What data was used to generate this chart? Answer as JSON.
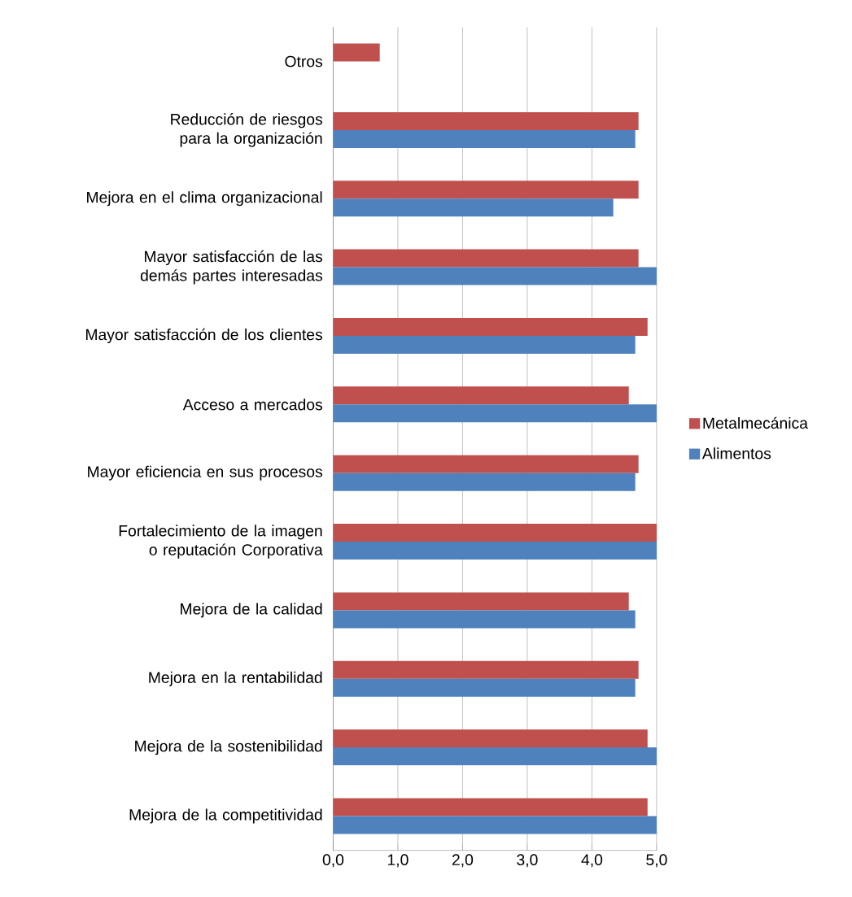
{
  "chart_data": {
    "type": "bar",
    "orientation": "horizontal",
    "categories": [
      "Otros",
      "Reducción de riesgos para la organización",
      "Mejora en el clima organizacional",
      "Mayor satisfacción de las demás partes interesadas",
      "Mayor satisfacción de los clientes",
      "Acceso a mercados",
      "Mayor eficiencia en sus procesos",
      "Fortalecimiento de la imagen o reputación Corporativa",
      "Mejora de la calidad",
      "Mejora en la rentabilidad",
      "Mejora de la sostenibilidad",
      "Mejora de la competitividad"
    ],
    "series": [
      {
        "name": "Metalmecánica",
        "color": "#c0504d",
        "values": [
          0.72,
          4.72,
          4.72,
          4.72,
          4.86,
          4.57,
          4.72,
          5.0,
          4.57,
          4.72,
          4.86,
          4.86
        ]
      },
      {
        "name": "Alimentos",
        "color": "#4f81bd",
        "values": [
          null,
          4.67,
          4.33,
          5.0,
          4.67,
          5.0,
          4.67,
          5.0,
          4.67,
          4.67,
          5.0,
          5.0
        ]
      }
    ],
    "xlim": [
      0,
      5
    ],
    "xticks": [
      {
        "value": 0,
        "label": "0,0"
      },
      {
        "value": 1,
        "label": "1,0"
      },
      {
        "value": 2,
        "label": "2,0"
      },
      {
        "value": 3,
        "label": "3,0"
      },
      {
        "value": 4,
        "label": "4,0"
      },
      {
        "value": 5,
        "label": "5,0"
      }
    ],
    "grid": "x",
    "legend": "right"
  }
}
